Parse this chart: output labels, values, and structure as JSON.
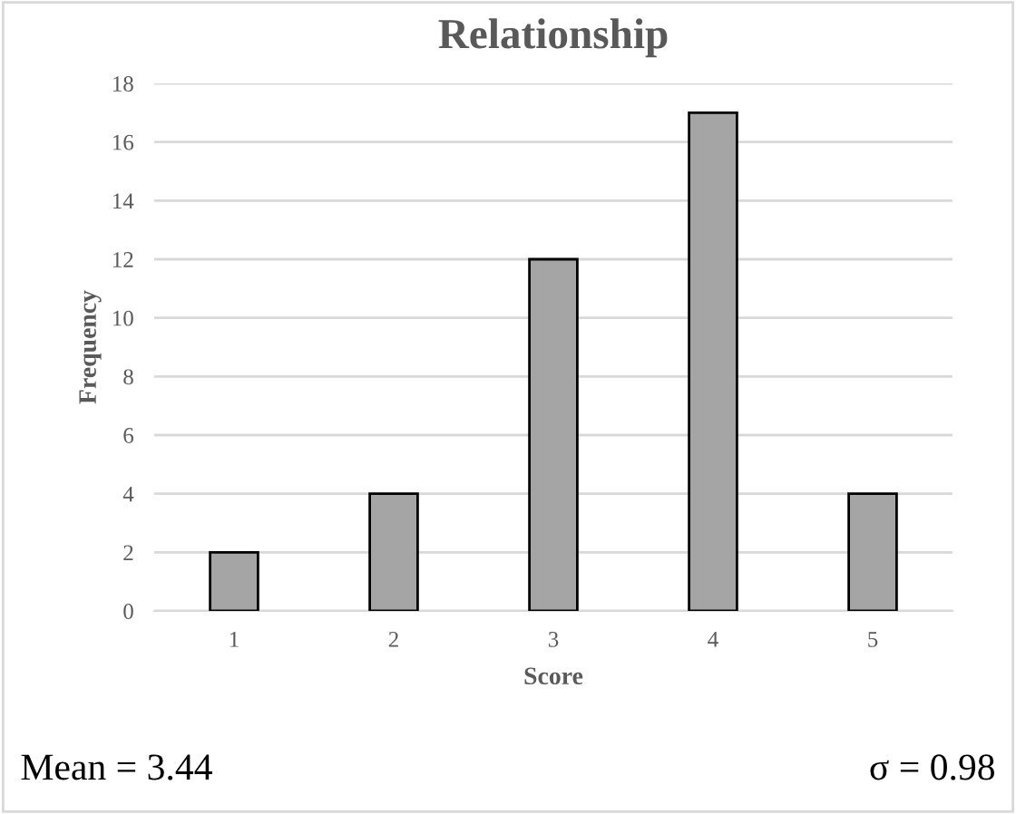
{
  "chart_data": {
    "type": "bar",
    "title": "Relationship",
    "xlabel": "Score",
    "ylabel": "Frequency",
    "categories": [
      "1",
      "2",
      "3",
      "4",
      "5"
    ],
    "values": [
      2,
      4,
      12,
      17,
      4
    ],
    "color": "#a5a5a5",
    "ylim": [
      0,
      18
    ],
    "yticks": [
      0,
      2,
      4,
      6,
      8,
      10,
      12,
      14,
      16,
      18
    ],
    "grid": "y",
    "annotations": [
      "Mean = 3.44",
      "σ = 0.98"
    ]
  }
}
